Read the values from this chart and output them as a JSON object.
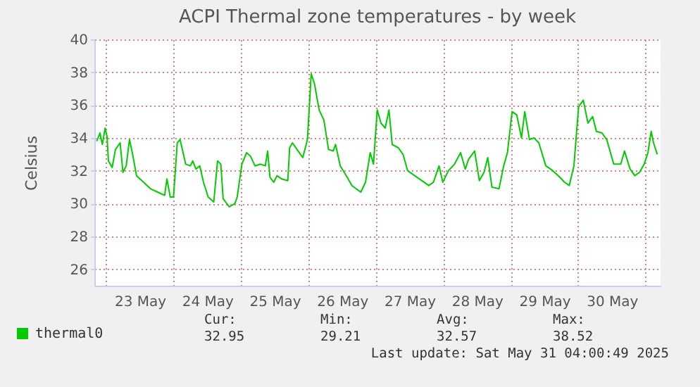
{
  "chart_data": {
    "type": "line",
    "title": "ACPI Thermal zone temperatures - by week",
    "ylabel": "Celsius",
    "x": [
      "2025-05-22T20:40",
      "2025-05-22T21:50",
      "2025-05-22T22:40",
      "2025-05-22T23:40",
      "2025-05-23T00:20",
      "2025-05-23T00:50",
      "2025-05-23T02:10",
      "2025-05-23T03:20",
      "2025-05-23T05:00",
      "2025-05-23T06:00",
      "2025-05-23T07:10",
      "2025-05-23T08:20",
      "2025-05-23T09:20",
      "2025-05-23T10:50",
      "2025-05-23T13:20",
      "2025-05-23T15:50",
      "2025-05-23T18:20",
      "2025-05-23T20:50",
      "2025-05-23T21:40",
      "2025-05-23T22:50",
      "2025-05-24T00:00",
      "2025-05-24T01:20",
      "2025-05-24T02:20",
      "2025-05-24T04:20",
      "2025-05-24T06:00",
      "2025-05-24T06:50",
      "2025-05-24T08:00",
      "2025-05-24T09:20",
      "2025-05-24T10:40",
      "2025-05-24T12:20",
      "2025-05-24T14:20",
      "2025-05-24T15:40",
      "2025-05-24T16:50",
      "2025-05-24T17:40",
      "2025-05-24T19:50",
      "2025-05-24T21:50",
      "2025-05-24T22:40",
      "2025-05-25T00:20",
      "2025-05-25T02:00",
      "2025-05-25T03:20",
      "2025-05-25T05:00",
      "2025-05-25T07:00",
      "2025-05-25T08:40",
      "2025-05-25T09:30",
      "2025-05-25T10:20",
      "2025-05-25T11:40",
      "2025-05-25T12:50",
      "2025-05-25T14:30",
      "2025-05-25T16:40",
      "2025-05-25T17:20",
      "2025-05-25T18:20",
      "2025-05-25T20:20",
      "2025-05-25T22:00",
      "2025-05-25T23:40",
      "2025-05-26T01:00",
      "2025-05-26T02:10",
      "2025-05-26T03:50",
      "2025-05-26T05:30",
      "2025-05-26T07:10",
      "2025-05-26T08:50",
      "2025-05-26T09:40",
      "2025-05-26T11:20",
      "2025-05-26T13:50",
      "2025-05-26T15:30",
      "2025-05-26T17:00",
      "2025-05-26T18:40",
      "2025-05-26T20:20",
      "2025-05-26T22:00",
      "2025-05-26T23:10",
      "2025-05-27T00:30",
      "2025-05-27T01:50",
      "2025-05-27T03:20",
      "2025-05-27T04:40",
      "2025-05-27T05:50",
      "2025-05-27T08:00",
      "2025-05-27T09:40",
      "2025-05-27T11:20",
      "2025-05-27T13:50",
      "2025-05-27T16:20",
      "2025-05-27T18:50",
      "2025-05-27T20:30",
      "2025-05-27T22:30",
      "2025-05-27T23:50",
      "2025-05-28T01:50",
      "2025-05-28T04:00",
      "2025-05-28T06:10",
      "2025-05-28T07:50",
      "2025-05-28T09:00",
      "2025-05-28T11:10",
      "2025-05-28T12:50",
      "2025-05-28T14:30",
      "2025-05-28T15:50",
      "2025-05-28T17:20",
      "2025-05-28T19:50",
      "2025-05-28T21:30",
      "2025-05-28T22:50",
      "2025-05-29T00:30",
      "2025-05-29T02:10",
      "2025-05-29T03:50",
      "2025-05-29T05:00",
      "2025-05-29T06:40",
      "2025-05-29T08:20",
      "2025-05-29T10:00",
      "2025-05-29T12:30",
      "2025-05-29T15:00",
      "2025-05-29T17:30",
      "2025-05-29T19:10",
      "2025-05-29T20:50",
      "2025-05-29T22:30",
      "2025-05-30T00:10",
      "2025-05-30T01:50",
      "2025-05-30T03:30",
      "2025-05-30T05:10",
      "2025-05-30T06:30",
      "2025-05-30T08:30",
      "2025-05-30T10:10",
      "2025-05-30T12:40",
      "2025-05-30T15:10",
      "2025-05-30T16:30",
      "2025-05-30T18:30",
      "2025-05-30T20:10",
      "2025-05-30T21:50",
      "2025-05-30T23:30",
      "2025-05-31T00:50",
      "2025-05-31T02:00",
      "2025-05-31T02:50",
      "2025-05-31T04:10"
    ],
    "series": [
      {
        "name": "thermal0",
        "color": "#00cc00",
        "values": [
          33.8,
          34.3,
          33.6,
          34.6,
          34.1,
          32.6,
          32.2,
          33.3,
          33.7,
          31.9,
          32.3,
          33.9,
          33.1,
          31.7,
          31.3,
          30.9,
          30.7,
          30.5,
          31.5,
          30.4,
          30.4,
          33.7,
          33.9,
          32.4,
          32.3,
          32.6,
          32.1,
          32.3,
          31.3,
          30.4,
          30.1,
          32.6,
          32.4,
          30.3,
          29.8,
          30.0,
          30.4,
          32.4,
          33.1,
          32.9,
          32.3,
          32.4,
          32.3,
          33.2,
          31.6,
          31.3,
          31.7,
          31.5,
          31.4,
          33.4,
          33.7,
          33.2,
          32.8,
          33.9,
          37.9,
          37.3,
          35.7,
          35.1,
          33.3,
          33.2,
          33.6,
          32.3,
          31.6,
          31.1,
          30.9,
          30.7,
          31.3,
          33.1,
          32.4,
          35.7,
          34.9,
          34.6,
          35.7,
          33.6,
          33.4,
          33.0,
          32.0,
          31.7,
          31.4,
          31.1,
          31.3,
          32.3,
          31.3,
          32.0,
          32.4,
          33.1,
          32.1,
          32.7,
          33.2,
          31.4,
          31.9,
          32.8,
          31.0,
          30.9,
          32.3,
          33.1,
          35.6,
          35.4,
          34.0,
          35.6,
          33.9,
          34.0,
          33.7,
          32.3,
          32.0,
          31.6,
          31.3,
          31.1,
          32.3,
          35.9,
          36.3,
          34.9,
          35.3,
          34.4,
          34.3,
          33.9,
          32.4,
          32.4,
          33.2,
          32.1,
          31.7,
          31.9,
          32.4,
          33.1,
          34.4,
          33.7,
          33.0
        ]
      }
    ],
    "xlim": [
      "2025-05-22T19:50",
      "2025-05-31T05:20"
    ],
    "xticks": [
      {
        "value": "2025-05-23T00:00",
        "label": null
      },
      {
        "value": "2025-05-23T12:00",
        "label": "23 May"
      },
      {
        "value": "2025-05-24T00:00",
        "label": null
      },
      {
        "value": "2025-05-24T12:00",
        "label": "24 May"
      },
      {
        "value": "2025-05-25T00:00",
        "label": null
      },
      {
        "value": "2025-05-25T12:00",
        "label": "25 May"
      },
      {
        "value": "2025-05-26T00:00",
        "label": null
      },
      {
        "value": "2025-05-26T12:00",
        "label": "26 May"
      },
      {
        "value": "2025-05-27T00:00",
        "label": null
      },
      {
        "value": "2025-05-27T12:00",
        "label": "27 May"
      },
      {
        "value": "2025-05-28T00:00",
        "label": null
      },
      {
        "value": "2025-05-28T12:00",
        "label": "28 May"
      },
      {
        "value": "2025-05-29T00:00",
        "label": null
      },
      {
        "value": "2025-05-29T12:00",
        "label": "29 May"
      },
      {
        "value": "2025-05-30T00:00",
        "label": null
      },
      {
        "value": "2025-05-30T12:00",
        "label": "30 May"
      },
      {
        "value": "2025-05-31T00:00",
        "label": null
      }
    ],
    "ylim": [
      25,
      40
    ],
    "yticks": [
      26,
      28,
      30,
      32,
      34,
      36,
      38,
      40
    ],
    "grid": true,
    "legend": "bottom left",
    "annotations": [
      "Cur:",
      "32.95",
      "Min:",
      "29.21",
      "Avg:",
      "32.57",
      "Max:",
      "38.52",
      "Last update: Sat May 31 04:00:49 2025"
    ]
  }
}
